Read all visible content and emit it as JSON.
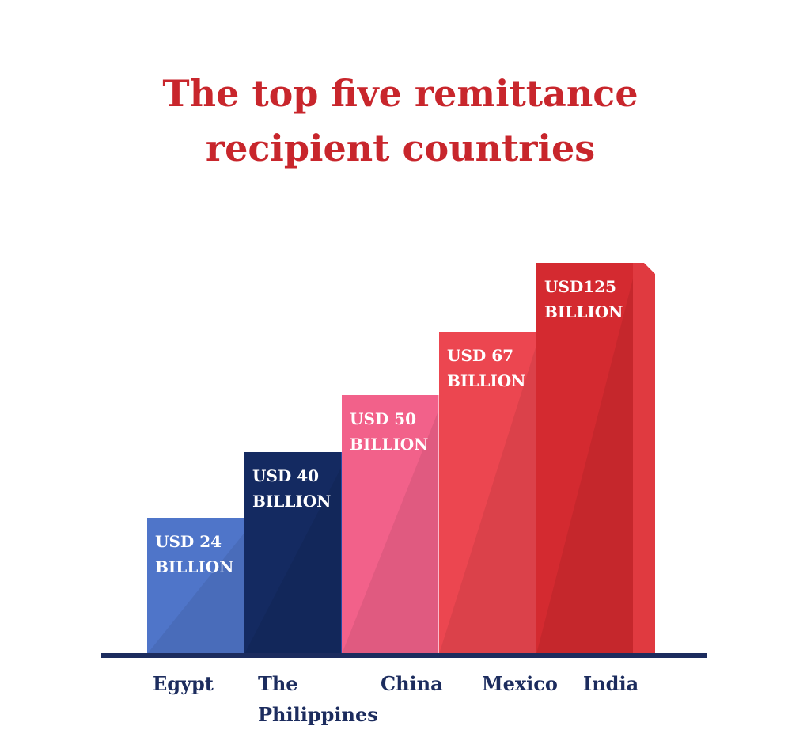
{
  "chart_data": {
    "type": "bar",
    "title_lines": [
      "The top five remittance",
      "recipient countries"
    ],
    "categories": [
      {
        "lines": [
          "Egypt"
        ]
      },
      {
        "lines": [
          "The",
          "Philippines"
        ]
      },
      {
        "lines": [
          "China"
        ]
      },
      {
        "lines": [
          "Mexico"
        ]
      },
      {
        "lines": [
          "India"
        ]
      }
    ],
    "values": [
      24,
      40,
      50,
      67,
      125
    ],
    "value_labels": [
      [
        "USD 24",
        "BILLION"
      ],
      [
        "USD 40",
        "BILLION"
      ],
      [
        "USD 50",
        "BILLION"
      ],
      [
        "USD 67",
        "BILLION"
      ],
      [
        "USD125",
        "BILLION"
      ]
    ],
    "unit": "USD billion",
    "colors": [
      {
        "front": "#4f75c9",
        "side": "#6c8ad8"
      },
      {
        "front": "#142a61",
        "side": "#2548a4"
      },
      {
        "front": "#f2618a",
        "side": "#fbb8cb"
      },
      {
        "front": "#ec4650",
        "side": "#d76f8a"
      },
      {
        "front": "#d42a30",
        "side": "#e03a40"
      }
    ],
    "baseline_color": "#1c2c5e",
    "grid": false,
    "legend": "none"
  }
}
